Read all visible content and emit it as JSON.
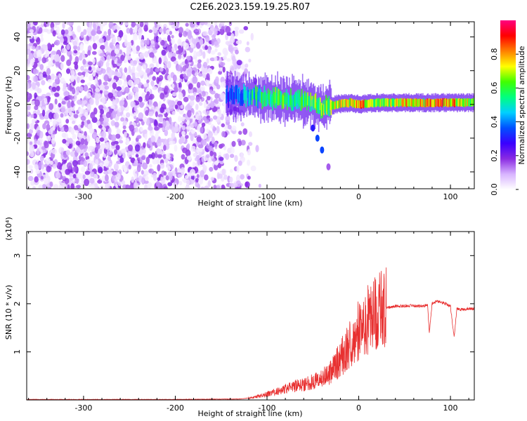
{
  "figure": {
    "title": "C2E6.2023.159.19.25.R07"
  },
  "chart_data": [
    {
      "type": "heatmap",
      "xlabel": "Height of straight line (km)",
      "ylabel": "Frequency (Hz)",
      "xlim": [
        -362,
        126
      ],
      "ylim": [
        -50,
        49
      ],
      "xticks": [
        -300,
        -200,
        -100,
        0,
        100
      ],
      "yticks": [
        -40,
        -20,
        0,
        20,
        40
      ],
      "colorbar": {
        "label": "Normalized spectral amplitude",
        "range": [
          0,
          1
        ],
        "ticks": [
          0.0,
          0.2,
          0.4,
          0.6,
          0.8
        ],
        "tick_labels": [
          "0.0",
          "0.2",
          "0.4",
          "0.6",
          "0.8"
        ],
        "colormap": [
          "#ffffff",
          "#d8b4ff",
          "#8a2be2",
          "#3a00ff",
          "#0050ff",
          "#00d0ff",
          "#00ff80",
          "#40ff00",
          "#ffff00",
          "#ff8000",
          "#ff0000",
          "#ff0080"
        ]
      },
      "noise_region": {
        "x_range": [
          -362,
          -125
        ],
        "amplitude_range": [
          0.02,
          0.2
        ]
      },
      "ridge": [
        {
          "x": -145,
          "y": 5,
          "amp": 0.35
        },
        {
          "x": -130,
          "y": 5,
          "amp": 0.45
        },
        {
          "x": -115,
          "y": 5,
          "amp": 0.55
        },
        {
          "x": -100,
          "y": 4,
          "amp": 0.6
        },
        {
          "x": -85,
          "y": 3,
          "amp": 0.65
        },
        {
          "x": -70,
          "y": 2,
          "amp": 0.6
        },
        {
          "x": -55,
          "y": 2,
          "amp": 0.65
        },
        {
          "x": -40,
          "y": -2,
          "amp": 0.7
        },
        {
          "x": -25,
          "y": 0,
          "amp": 0.75
        },
        {
          "x": -10,
          "y": 1,
          "amp": 0.8
        },
        {
          "x": 0,
          "y": 0,
          "amp": 0.85
        },
        {
          "x": 20,
          "y": 1,
          "amp": 0.7
        },
        {
          "x": 40,
          "y": 1,
          "amp": 0.75
        },
        {
          "x": 55,
          "y": 1,
          "amp": 0.85
        },
        {
          "x": 70,
          "y": 1,
          "amp": 0.8
        },
        {
          "x": 85,
          "y": 1,
          "amp": 0.9
        },
        {
          "x": 100,
          "y": 1,
          "amp": 0.85
        },
        {
          "x": 126,
          "y": 1,
          "amp": 0.7
        }
      ],
      "branch": [
        {
          "x": -50,
          "y": -14,
          "amp": 0.3
        },
        {
          "x": -45,
          "y": -20,
          "amp": 0.35
        },
        {
          "x": -40,
          "y": -27,
          "amp": 0.35
        },
        {
          "x": -33,
          "y": -37,
          "amp": 0.15
        }
      ]
    },
    {
      "type": "line",
      "xlabel": "Height of straight line (km)",
      "ylabel": "SNR (10 * v/v)",
      "y_multiplier": "(x10⁴)",
      "xlim": [
        -362,
        126
      ],
      "ylim": [
        0,
        3.5
      ],
      "xticks": [
        -300,
        -200,
        -100,
        0,
        100
      ],
      "yticks": [
        1,
        2,
        3
      ],
      "series": [
        {
          "color": "#e83030",
          "x": [
            -362,
            -300,
            -200,
            -130,
            -115,
            -100,
            -85,
            -70,
            -55,
            -40,
            -30,
            -20,
            -10,
            0,
            10,
            20,
            30,
            40,
            60,
            70,
            75,
            77,
            80,
            85,
            95,
            100,
            104,
            107,
            110,
            126
          ],
          "y": [
            0.01,
            0.01,
            0.01,
            0.02,
            0.05,
            0.12,
            0.2,
            0.28,
            0.35,
            0.45,
            0.6,
            0.85,
            1.15,
            1.45,
            1.65,
            1.85,
            1.92,
            1.95,
            1.96,
            1.95,
            1.98,
            1.4,
            2.0,
            2.05,
            2.0,
            1.95,
            1.3,
            1.9,
            1.88,
            1.9
          ]
        }
      ]
    }
  ]
}
